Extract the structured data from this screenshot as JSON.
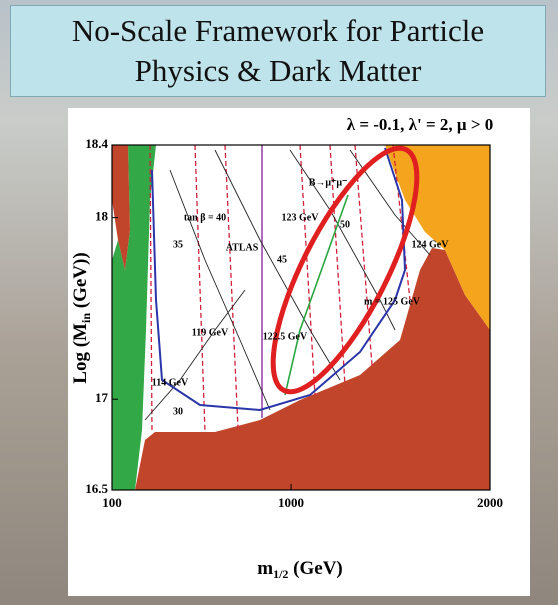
{
  "chart_data": {
    "type": "contour",
    "title": "No-Scale Framework for Particle Physics & Dark Matter",
    "subtitle": "λ = -0.1, λ' = 2, μ > 0",
    "xlabel": {
      "base": "m",
      "sub": "1/2",
      "rest": " (GeV)"
    },
    "ylabel": {
      "base": "Log (M",
      "sub": "in",
      "rest": " (GeV))"
    },
    "xlim": [
      100,
      2000
    ],
    "xticks": [
      100,
      1000,
      2000
    ],
    "ylim": [
      16.5,
      18.4
    ],
    "yticks": [
      16.5,
      17,
      18,
      18.4
    ],
    "annotations": [
      "tan β = 40",
      "35",
      "ATLAS",
      "45",
      "123 GeV",
      "50",
      "124 GeV",
      "119 GeV",
      "122.5 GeV",
      "m  = 125 GeV",
      "114 GeV",
      "30",
      "B→μ⁺μ⁻"
    ]
  }
}
